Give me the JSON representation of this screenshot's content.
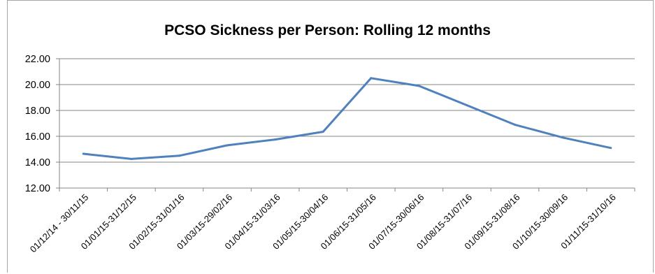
{
  "chart_data": {
    "type": "line",
    "title": "PCSO Sickness per Person: Rolling 12 months",
    "xlabel": "",
    "ylabel": "",
    "categories": [
      "01/12/14 - 30/11/15",
      "01/01/15-31/12/15",
      "01/02/15-31/01/16",
      "01/03/15-29/02/16",
      "01/04/15-31/03/16",
      "01/05/15-30/04/16",
      "01/06/15-31/05/16",
      "01/07/15-30/06/16",
      "01/08/15-31/07/16",
      "01/09/15-31/08/16",
      "01/10/15-30/09/16",
      "01/11/15-31/10/16"
    ],
    "series": [
      {
        "values": [
          14.65,
          14.25,
          14.5,
          15.3,
          15.75,
          16.35,
          20.5,
          19.9,
          18.4,
          16.9,
          15.9,
          15.1
        ]
      }
    ],
    "yticks": [
      "12.00",
      "14.00",
      "16.00",
      "18.00",
      "20.00",
      "22.00"
    ],
    "ylim": [
      12,
      22
    ],
    "grid": true,
    "legend": "none",
    "colors": {
      "line": "#4f81bd",
      "grid": "#868686",
      "axis": "#868686"
    }
  }
}
